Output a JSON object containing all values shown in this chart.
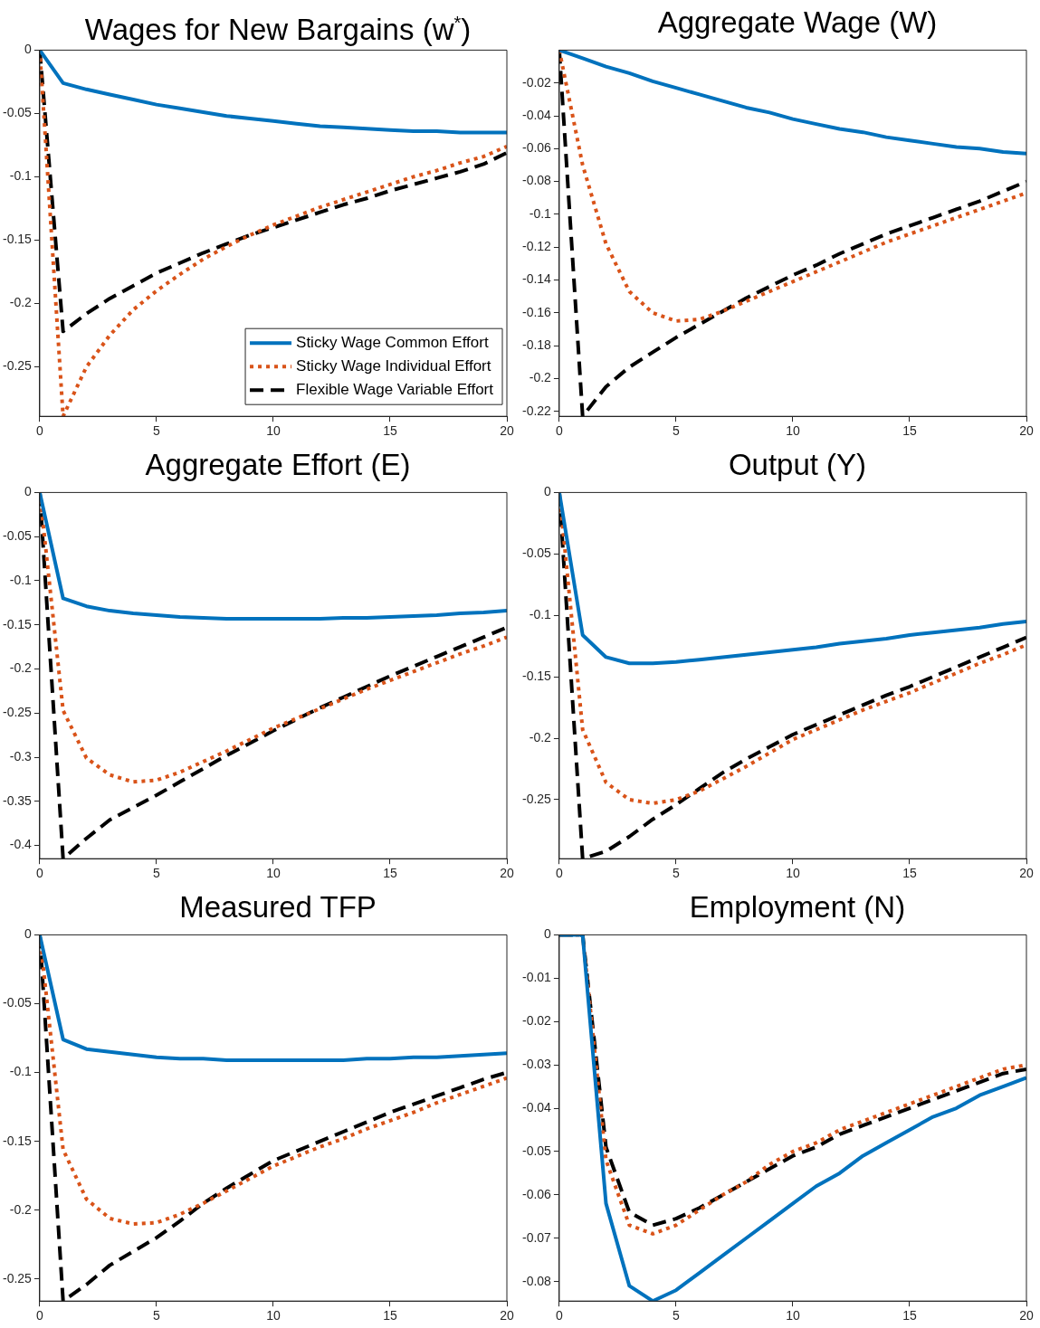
{
  "chart_data": [
    {
      "type": "line",
      "title": "Wages for New Bargains (w$^{*}$)",
      "x": [
        0,
        1,
        2,
        3,
        4,
        5,
        6,
        7,
        8,
        9,
        10,
        11,
        12,
        13,
        14,
        15,
        16,
        17,
        18,
        19,
        20
      ],
      "xlim": [
        0,
        20
      ],
      "xticks": [
        0,
        5,
        10,
        15,
        20
      ],
      "ylim": [
        -0.289,
        0
      ],
      "yticks": [
        0,
        -0.05,
        -0.1,
        -0.15,
        -0.2,
        -0.25
      ],
      "legend": "bottom right",
      "series": [
        {
          "name": "Sticky Wage Common Effort",
          "color": "#0072bd",
          "line_style": "solid",
          "values": [
            0,
            -0.026,
            -0.031,
            -0.035,
            -0.039,
            -0.043,
            -0.046,
            -0.049,
            -0.052,
            -0.054,
            -0.056,
            -0.058,
            -0.06,
            -0.061,
            -0.062,
            -0.063,
            -0.064,
            -0.064,
            -0.065,
            -0.065,
            -0.065
          ]
        },
        {
          "name": "Sticky Wage Individual Effort",
          "color": "#d95319",
          "line_style": "dotted",
          "values": [
            0,
            -0.289,
            -0.25,
            -0.225,
            -0.205,
            -0.19,
            -0.177,
            -0.165,
            -0.155,
            -0.146,
            -0.138,
            -0.131,
            -0.124,
            -0.118,
            -0.112,
            -0.106,
            -0.1,
            -0.095,
            -0.089,
            -0.084,
            -0.076
          ]
        },
        {
          "name": "Flexible Wage Variable Effort",
          "color": "#000000",
          "line_style": "dashed",
          "values": [
            0,
            -0.222,
            -0.208,
            -0.196,
            -0.186,
            -0.176,
            -0.168,
            -0.16,
            -0.153,
            -0.146,
            -0.14,
            -0.134,
            -0.128,
            -0.122,
            -0.117,
            -0.111,
            -0.106,
            -0.101,
            -0.096,
            -0.09,
            -0.081
          ]
        }
      ]
    },
    {
      "type": "line",
      "title": "Aggregate Wage (W)",
      "x": [
        0,
        1,
        2,
        3,
        4,
        5,
        6,
        7,
        8,
        9,
        10,
        11,
        12,
        13,
        14,
        15,
        16,
        17,
        18,
        19,
        20
      ],
      "xlim": [
        0,
        20
      ],
      "xticks": [
        0,
        5,
        10,
        15,
        20
      ],
      "ylim": [
        -0.223,
        0
      ],
      "yticks": [
        -0.02,
        -0.04,
        -0.06,
        -0.08,
        -0.1,
        -0.12,
        -0.14,
        -0.16,
        -0.18,
        -0.2,
        -0.22
      ],
      "series": [
        {
          "color": "#0072bd",
          "line_style": "solid",
          "values": [
            0,
            -0.005,
            -0.01,
            -0.014,
            -0.019,
            -0.023,
            -0.027,
            -0.031,
            -0.035,
            -0.038,
            -0.042,
            -0.045,
            -0.048,
            -0.05,
            -0.053,
            -0.055,
            -0.057,
            -0.059,
            -0.06,
            -0.062,
            -0.063
          ]
        },
        {
          "color": "#d95319",
          "line_style": "dotted",
          "values": [
            0,
            -0.07,
            -0.118,
            -0.147,
            -0.16,
            -0.165,
            -0.164,
            -0.159,
            -0.153,
            -0.147,
            -0.141,
            -0.135,
            -0.129,
            -0.123,
            -0.117,
            -0.112,
            -0.107,
            -0.102,
            -0.097,
            -0.092,
            -0.087
          ]
        },
        {
          "color": "#000000",
          "line_style": "dashed",
          "values": [
            0,
            -0.223,
            -0.205,
            -0.193,
            -0.184,
            -0.175,
            -0.167,
            -0.159,
            -0.151,
            -0.144,
            -0.137,
            -0.131,
            -0.124,
            -0.118,
            -0.112,
            -0.107,
            -0.102,
            -0.097,
            -0.092,
            -0.086,
            -0.08
          ]
        }
      ]
    },
    {
      "type": "line",
      "title": "Aggregate Effort (E)",
      "x": [
        0,
        1,
        2,
        3,
        4,
        5,
        6,
        7,
        8,
        9,
        10,
        11,
        12,
        13,
        14,
        15,
        16,
        17,
        18,
        19,
        20
      ],
      "xlim": [
        0,
        20
      ],
      "xticks": [
        0,
        5,
        10,
        15,
        20
      ],
      "ylim": [
        -0.415,
        0
      ],
      "yticks": [
        0,
        -0.05,
        -0.1,
        -0.15,
        -0.2,
        -0.25,
        -0.3,
        -0.35,
        -0.4
      ],
      "series": [
        {
          "color": "#0072bd",
          "line_style": "solid",
          "values": [
            0,
            -0.12,
            -0.129,
            -0.134,
            -0.137,
            -0.139,
            -0.141,
            -0.142,
            -0.143,
            -0.143,
            -0.143,
            -0.143,
            -0.143,
            -0.142,
            -0.142,
            -0.141,
            -0.14,
            -0.139,
            -0.137,
            -0.136,
            -0.134
          ]
        },
        {
          "color": "#d95319",
          "line_style": "dotted",
          "values": [
            0,
            -0.247,
            -0.301,
            -0.32,
            -0.328,
            -0.326,
            -0.317,
            -0.305,
            -0.293,
            -0.28,
            -0.267,
            -0.256,
            -0.245,
            -0.234,
            -0.223,
            -0.213,
            -0.203,
            -0.193,
            -0.183,
            -0.174,
            -0.164
          ]
        },
        {
          "color": "#000000",
          "line_style": "dashed",
          "values": [
            0,
            -0.415,
            -0.392,
            -0.371,
            -0.357,
            -0.343,
            -0.328,
            -0.313,
            -0.298,
            -0.284,
            -0.27,
            -0.257,
            -0.244,
            -0.232,
            -0.22,
            -0.208,
            -0.197,
            -0.186,
            -0.175,
            -0.164,
            -0.153
          ]
        }
      ]
    },
    {
      "type": "line",
      "title": "Output (Y)",
      "x": [
        0,
        1,
        2,
        3,
        4,
        5,
        6,
        7,
        8,
        9,
        10,
        11,
        12,
        13,
        14,
        15,
        16,
        17,
        18,
        19,
        20
      ],
      "xlim": [
        0,
        20
      ],
      "xticks": [
        0,
        5,
        10,
        15,
        20
      ],
      "ylim": [
        -0.298,
        0
      ],
      "yticks": [
        0,
        -0.05,
        -0.1,
        -0.15,
        -0.2,
        -0.25
      ],
      "series": [
        {
          "color": "#0072bd",
          "line_style": "solid",
          "values": [
            0,
            -0.116,
            -0.134,
            -0.139,
            -0.139,
            -0.138,
            -0.136,
            -0.134,
            -0.132,
            -0.13,
            -0.128,
            -0.126,
            -0.123,
            -0.121,
            -0.119,
            -0.116,
            -0.114,
            -0.112,
            -0.11,
            -0.107,
            -0.105
          ]
        },
        {
          "color": "#d95319",
          "line_style": "dotted",
          "values": [
            0,
            -0.193,
            -0.236,
            -0.25,
            -0.253,
            -0.25,
            -0.243,
            -0.233,
            -0.223,
            -0.212,
            -0.201,
            -0.193,
            -0.185,
            -0.177,
            -0.17,
            -0.163,
            -0.155,
            -0.147,
            -0.139,
            -0.132,
            -0.124
          ]
        },
        {
          "color": "#000000",
          "line_style": "dashed",
          "values": [
            0,
            -0.298,
            -0.292,
            -0.28,
            -0.266,
            -0.254,
            -0.241,
            -0.228,
            -0.217,
            -0.207,
            -0.197,
            -0.189,
            -0.181,
            -0.173,
            -0.165,
            -0.158,
            -0.15,
            -0.142,
            -0.134,
            -0.126,
            -0.118
          ]
        }
      ]
    },
    {
      "type": "line",
      "title": "Measured TFP",
      "x": [
        0,
        1,
        2,
        3,
        4,
        5,
        6,
        7,
        8,
        9,
        10,
        11,
        12,
        13,
        14,
        15,
        16,
        17,
        18,
        19,
        20
      ],
      "xlim": [
        0,
        20
      ],
      "xticks": [
        0,
        5,
        10,
        15,
        20
      ],
      "ylim": [
        -0.266,
        0
      ],
      "yticks": [
        0,
        -0.05,
        -0.1,
        -0.15,
        -0.2,
        -0.25
      ],
      "series": [
        {
          "color": "#0072bd",
          "line_style": "solid",
          "values": [
            0,
            -0.076,
            -0.083,
            -0.085,
            -0.087,
            -0.089,
            -0.09,
            -0.09,
            -0.091,
            -0.091,
            -0.091,
            -0.091,
            -0.091,
            -0.091,
            -0.09,
            -0.09,
            -0.089,
            -0.089,
            -0.088,
            -0.087,
            -0.086
          ]
        },
        {
          "color": "#d95319",
          "line_style": "dotted",
          "values": [
            0,
            -0.156,
            -0.192,
            -0.206,
            -0.21,
            -0.209,
            -0.203,
            -0.195,
            -0.186,
            -0.177,
            -0.168,
            -0.161,
            -0.154,
            -0.148,
            -0.141,
            -0.135,
            -0.129,
            -0.122,
            -0.116,
            -0.11,
            -0.104
          ]
        },
        {
          "color": "#000000",
          "line_style": "dashed",
          "values": [
            0,
            -0.266,
            -0.254,
            -0.24,
            -0.23,
            -0.22,
            -0.208,
            -0.195,
            -0.184,
            -0.174,
            -0.164,
            -0.157,
            -0.15,
            -0.143,
            -0.136,
            -0.129,
            -0.123,
            -0.117,
            -0.111,
            -0.105,
            -0.1
          ]
        }
      ]
    },
    {
      "type": "line",
      "title": "Employment (N)",
      "x": [
        0,
        1,
        2,
        3,
        4,
        5,
        6,
        7,
        8,
        9,
        10,
        11,
        12,
        13,
        14,
        15,
        16,
        17,
        18,
        19,
        20
      ],
      "xlim": [
        0,
        20
      ],
      "xticks": [
        0,
        5,
        10,
        15,
        20
      ],
      "ylim": [
        -0.0845,
        0
      ],
      "yticks": [
        0,
        -0.01,
        -0.02,
        -0.03,
        -0.04,
        -0.05,
        -0.06,
        -0.07,
        -0.08
      ],
      "series": [
        {
          "color": "#0072bd",
          "line_style": "solid",
          "values": [
            0,
            0,
            -0.062,
            -0.081,
            -0.0845,
            -0.082,
            -0.078,
            -0.074,
            -0.07,
            -0.066,
            -0.062,
            -0.058,
            -0.055,
            -0.051,
            -0.048,
            -0.045,
            -0.042,
            -0.04,
            -0.037,
            -0.035,
            -0.033
          ]
        },
        {
          "color": "#d95319",
          "line_style": "dotted",
          "values": [
            0,
            0,
            -0.052,
            -0.067,
            -0.069,
            -0.067,
            -0.0635,
            -0.06,
            -0.057,
            -0.053,
            -0.05,
            -0.048,
            -0.045,
            -0.043,
            -0.041,
            -0.039,
            -0.037,
            -0.035,
            -0.033,
            -0.031,
            -0.03
          ]
        },
        {
          "color": "#000000",
          "line_style": "dashed",
          "values": [
            0,
            0,
            -0.049,
            -0.064,
            -0.067,
            -0.0655,
            -0.063,
            -0.06,
            -0.057,
            -0.054,
            -0.051,
            -0.049,
            -0.046,
            -0.044,
            -0.042,
            -0.04,
            -0.038,
            -0.036,
            -0.034,
            -0.032,
            -0.031
          ]
        }
      ]
    }
  ]
}
